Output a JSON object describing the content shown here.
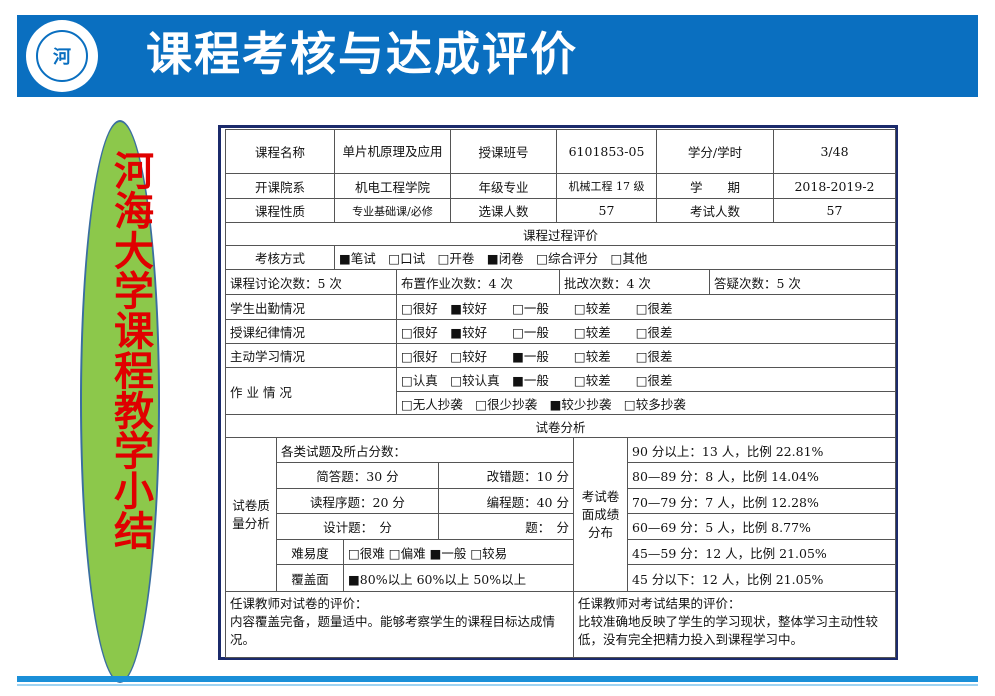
{
  "slide": {
    "title": "课程考核与达成评价",
    "side_label": "河海大学课程教学小结",
    "logo_text": "河海大学",
    "colors": {
      "header": "#0a6fc0",
      "ellipse": "#8cc84b",
      "side_text": "#e00000",
      "frame": "#1b2a6b"
    }
  },
  "info": {
    "rows": [
      [
        "课程名称",
        "单片机原理及应用",
        "授课班号",
        "6101853-05",
        "学分/学时",
        "3/48"
      ],
      [
        "开课院系",
        "机电工程学院",
        "年级专业",
        "机械工程 17 级",
        "学　　期",
        "2018-2019-2"
      ],
      [
        "课程性质",
        "专业基础课/必修",
        "选课人数",
        "57",
        "考试人数",
        "57"
      ]
    ]
  },
  "process": {
    "title": "课程过程评价",
    "exam_method_label": "考核方式",
    "exam_method_options": "■笔试　□口试　□开卷　■闭卷　□综合评分　□其他",
    "counts": [
      "课程讨论次数：5 次",
      "布置作业次数：4 次",
      "批改次数：4 次",
      "答疑次数：5 次"
    ],
    "rows": [
      {
        "label": "学生出勤情况",
        "options": "□很好　■较好　　□一般　　□较差　　□很差"
      },
      {
        "label": "授课纪律情况",
        "options": "□很好　■较好　　□一般　　□较差　　□很差"
      },
      {
        "label": "主动学习情况",
        "options": "□很好　□较好　　■一般　　□较差　　□很差"
      }
    ],
    "homework_label": "作 业 情 况",
    "homework_options": [
      "□认真　□较认真　■一般　　□较差　　□很差",
      "□无人抄袭　□很少抄袭　■较少抄袭　□较多抄袭"
    ]
  },
  "exam": {
    "title": "试卷分析",
    "quality_label": "试卷质量分析",
    "scores_title": "各类试题及所占分数：",
    "items": [
      [
        "简答题：30 分",
        "改错题：10 分"
      ],
      [
        "读程序题：20 分",
        "编程题：40 分"
      ],
      [
        "设计题：　分",
        "题：　分"
      ]
    ],
    "difficulty_label": "难易度",
    "difficulty_options": "□很难 □偏难 ■一般 □较易",
    "coverage_label": "覆盖面",
    "coverage_options": "■80%以上 60%以上 50%以上",
    "distribution_label": "考试卷面成绩分布",
    "distribution": [
      "90 分以上：13 人，比例 22.81%",
      "80—89 分：8 人，比例 14.04%",
      "70—79 分：7 人，比例 12.28%",
      "60—69 分：5 人，比例 8.77%",
      "45—59 分：12 人，比例 21.05%",
      "45 分以下：12 人，比例 21.05%"
    ]
  },
  "comments": {
    "paper_title": "任课教师对试卷的评价：",
    "paper_text": "内容覆盖完备，题量适中。能够考察学生的课程目标达成情况。",
    "result_title": "任课教师对考试结果的评价：",
    "result_text": "比较准确地反映了学生的学习现状，整体学习主动性较低，没有完全把精力投入到课程学习中。"
  }
}
